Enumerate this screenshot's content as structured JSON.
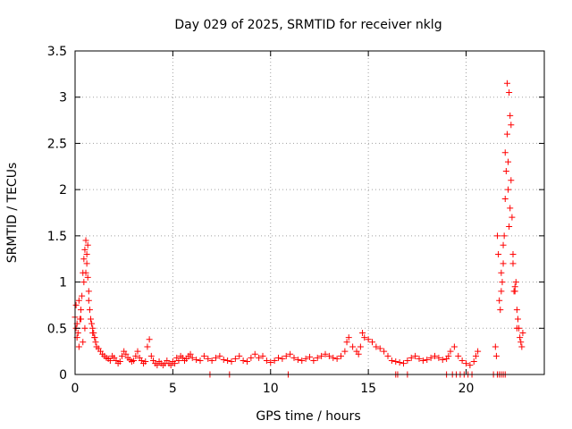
{
  "chart_data": {
    "type": "scatter",
    "title": "Day 029 of 2025, SRMTID for receiver nklg",
    "xlabel": "GPS time / hours",
    "ylabel": "SRMTID / TECUs",
    "xlim": [
      0,
      24
    ],
    "ylim": [
      0,
      3.5
    ],
    "xticks": [
      0,
      5,
      10,
      15,
      20
    ],
    "xtick_labels": [
      "0",
      "5",
      "10",
      "15",
      "20"
    ],
    "yticks": [
      0,
      0.5,
      1,
      1.5,
      2,
      2.5,
      3,
      3.5
    ],
    "ytick_labels": [
      "0",
      "0.5",
      "1",
      "1.5",
      "2",
      "2.5",
      "3",
      "3.5"
    ],
    "grid": true,
    "marker": "+",
    "color": "#ff0000",
    "series": [
      {
        "name": "SRMTID",
        "x": [
          0.0,
          0.05,
          0.1,
          0.15,
          0.2,
          0.25,
          0.3,
          0.35,
          0.4,
          0.45,
          0.5,
          0.55,
          0.6,
          0.65,
          0.7,
          0.75,
          0.8,
          0.85,
          0.9,
          0.95,
          1.0,
          1.05,
          1.1,
          1.2,
          1.3,
          1.4,
          1.5,
          1.6,
          1.7,
          1.8,
          1.9,
          2.0,
          2.1,
          2.2,
          2.3,
          2.4,
          2.5,
          2.6,
          2.7,
          2.8,
          2.9,
          3.0,
          3.1,
          3.2,
          3.3,
          3.4,
          3.5,
          3.6,
          3.7,
          3.8,
          3.9,
          4.0,
          4.1,
          4.2,
          4.3,
          4.4,
          4.5,
          4.6,
          4.7,
          4.8,
          4.9,
          5.0,
          5.1,
          5.2,
          5.3,
          5.4,
          5.5,
          5.6,
          5.7,
          5.8,
          5.9,
          6.0,
          6.2,
          6.4,
          6.6,
          6.8,
          7.0,
          7.2,
          7.4,
          7.6,
          7.8,
          8.0,
          8.2,
          8.4,
          8.6,
          8.8,
          9.0,
          9.2,
          9.4,
          9.6,
          9.8,
          10.0,
          10.2,
          10.4,
          10.6,
          10.8,
          11.0,
          11.2,
          11.4,
          11.6,
          11.8,
          12.0,
          12.2,
          12.4,
          12.6,
          12.8,
          13.0,
          13.2,
          13.4,
          13.6,
          13.8,
          13.9,
          14.0,
          14.2,
          14.4,
          14.5,
          14.6,
          14.7,
          14.8,
          15.0,
          15.2,
          15.4,
          15.6,
          15.8,
          16.0,
          16.2,
          16.4,
          16.6,
          16.8,
          17.0,
          17.2,
          17.4,
          17.6,
          17.8,
          18.0,
          18.2,
          18.4,
          18.6,
          18.8,
          19.0,
          19.1,
          19.2,
          19.4,
          19.6,
          19.8,
          20.0,
          20.2,
          20.4,
          20.5,
          20.6,
          21.5,
          21.55,
          21.6,
          21.65,
          21.7,
          21.75,
          21.8,
          21.85,
          21.9,
          21.95,
          22.0,
          22.05,
          22.1,
          22.15,
          22.2,
          22.25,
          22.3,
          22.35,
          22.4,
          22.45,
          22.5,
          22.55,
          22.6,
          22.65,
          22.7,
          22.75,
          22.8,
          22.85,
          22.9,
          0.05,
          0.1,
          0.2,
          0.3,
          0.4,
          0.5,
          0.6,
          0.7,
          0.8,
          0.9,
          1.0,
          0.45,
          0.55,
          0.65,
          22.1,
          22.2,
          22.3,
          22.15,
          22.25,
          22.0,
          22.4,
          22.5,
          22.6,
          21.8,
          21.9,
          6.9,
          7.9,
          10.9,
          16.4,
          16.5,
          17.0,
          19.0,
          19.3,
          19.5,
          19.7,
          19.9,
          20.1,
          20.3,
          21.4,
          21.6,
          21.7,
          21.8,
          21.9,
          22.0
        ],
        "values": [
          0.62,
          0.75,
          0.55,
          0.45,
          0.3,
          0.6,
          0.7,
          0.85,
          1.1,
          1.25,
          1.35,
          1.45,
          1.3,
          1.05,
          0.8,
          0.7,
          0.6,
          0.55,
          0.5,
          0.45,
          0.4,
          0.35,
          0.3,
          0.28,
          0.25,
          0.22,
          0.2,
          0.18,
          0.17,
          0.15,
          0.2,
          0.18,
          0.15,
          0.12,
          0.14,
          0.2,
          0.25,
          0.22,
          0.18,
          0.16,
          0.14,
          0.15,
          0.2,
          0.25,
          0.18,
          0.15,
          0.12,
          0.14,
          0.3,
          0.38,
          0.2,
          0.15,
          0.12,
          0.1,
          0.14,
          0.12,
          0.1,
          0.12,
          0.15,
          0.12,
          0.1,
          0.14,
          0.12,
          0.18,
          0.15,
          0.2,
          0.18,
          0.15,
          0.17,
          0.2,
          0.22,
          0.18,
          0.16,
          0.15,
          0.2,
          0.17,
          0.15,
          0.18,
          0.2,
          0.16,
          0.15,
          0.14,
          0.17,
          0.2,
          0.15,
          0.14,
          0.18,
          0.22,
          0.18,
          0.2,
          0.15,
          0.13,
          0.15,
          0.18,
          0.17,
          0.2,
          0.22,
          0.18,
          0.16,
          0.15,
          0.17,
          0.19,
          0.15,
          0.18,
          0.2,
          0.22,
          0.2,
          0.18,
          0.17,
          0.2,
          0.25,
          0.35,
          0.4,
          0.3,
          0.25,
          0.22,
          0.3,
          0.45,
          0.4,
          0.38,
          0.35,
          0.3,
          0.28,
          0.25,
          0.2,
          0.15,
          0.14,
          0.13,
          0.12,
          0.15,
          0.18,
          0.2,
          0.17,
          0.15,
          0.16,
          0.18,
          0.2,
          0.18,
          0.16,
          0.17,
          0.2,
          0.25,
          0.3,
          0.2,
          0.15,
          0.12,
          0.1,
          0.14,
          0.2,
          0.25,
          0.3,
          0.2,
          1.5,
          1.3,
          0.8,
          0.7,
          0.9,
          1.0,
          1.2,
          1.5,
          1.9,
          2.2,
          2.6,
          2.0,
          1.6,
          1.8,
          2.1,
          1.7,
          1.2,
          0.9,
          0.95,
          1.0,
          0.7,
          0.6,
          0.5,
          0.4,
          0.35,
          0.3,
          0.45,
          0.5,
          0.4,
          0.8,
          0.6,
          0.35,
          0.5,
          1.2,
          0.9,
          0.6,
          0.45,
          0.4,
          1.0,
          1.1,
          1.4,
          3.15,
          3.05,
          2.7,
          2.3,
          2.8,
          2.4,
          1.3,
          0.9,
          0.5,
          1.1,
          1.4,
          0.0,
          0.0,
          0.0,
          0.0,
          0.0,
          0.0,
          0.0,
          0.0,
          0.0,
          0.0,
          0.0,
          0.0,
          0.0,
          0.0,
          0.0,
          0.0,
          0.0,
          0.0,
          0.0
        ]
      }
    ]
  }
}
